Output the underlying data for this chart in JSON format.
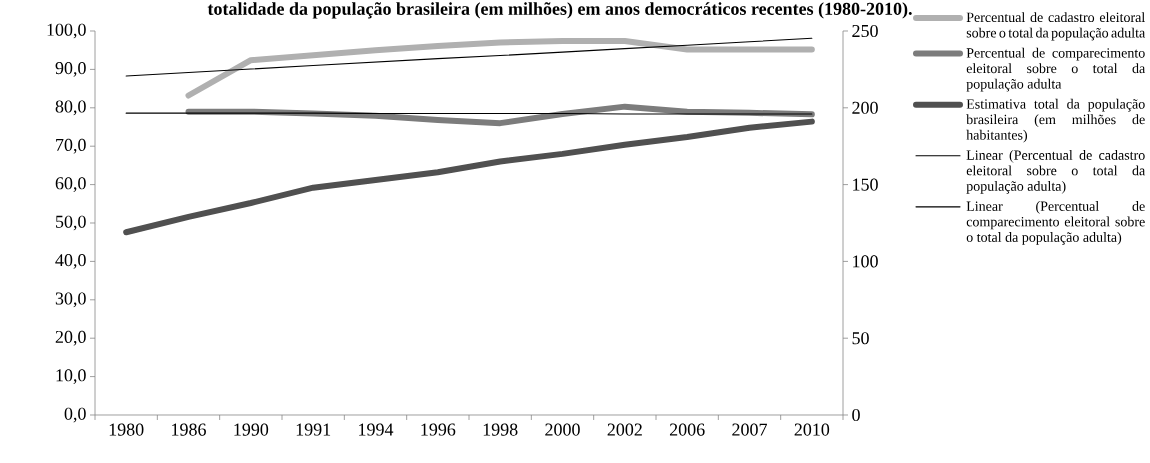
{
  "chart_data": {
    "type": "line",
    "title": "totalidade da população brasileira (em milhões) em anos democráticos recentes (1980-2010).",
    "categories": [
      "1980",
      "1986",
      "1990",
      "1991",
      "1994",
      "1996",
      "1998",
      "2000",
      "2002",
      "2006",
      "2007",
      "2010"
    ],
    "ylim": [
      0,
      100
    ],
    "yticks": [
      {
        "value": 0,
        "label": "0,0"
      },
      {
        "value": 10,
        "label": "10,0"
      },
      {
        "value": 20,
        "label": "20,0"
      },
      {
        "value": 30,
        "label": "30,0"
      },
      {
        "value": 40,
        "label": "40,0"
      },
      {
        "value": 50,
        "label": "50,0"
      },
      {
        "value": 60,
        "label": "60,0"
      },
      {
        "value": 70,
        "label": "70,0"
      },
      {
        "value": 80,
        "label": "80,0"
      },
      {
        "value": 90,
        "label": "90,0"
      },
      {
        "value": 100,
        "label": "100,0"
      }
    ],
    "y2lim": [
      0,
      250
    ],
    "y2ticks": [
      0,
      50,
      100,
      150,
      200,
      250
    ],
    "legend": "right",
    "series": [
      {
        "name": "Percentual de cadastro eleitoral sobre o total da população adulta",
        "color": "#b0b0b0",
        "values": [
          null,
          83.2,
          92.4,
          93.7,
          95.0,
          96.1,
          97.0,
          97.4,
          97.4,
          95.2,
          95.2,
          95.2
        ]
      },
      {
        "name": "Percentual de comparecimento eleitoral sobre o total da população adulta",
        "color": "#7c7c7c",
        "values": [
          null,
          79.0,
          79.0,
          78.5,
          77.9,
          76.8,
          76.0,
          78.4,
          80.3,
          79.0,
          78.7,
          78.3
        ]
      },
      {
        "name": "Estimativa total da população brasileira (em milhões de habitantes)",
        "color": "#505050",
        "axis": "y2",
        "values": [
          119,
          129,
          138,
          148,
          153,
          158,
          165,
          170,
          176,
          181,
          187,
          191
        ]
      },
      {
        "name": "Linear (Percentual de cadastro eleitoral sobre o total da população adulta)",
        "color": "#000000",
        "type": "line",
        "values": [
          88.3,
          89.2,
          90.1,
          91.0,
          91.9,
          92.8,
          93.6,
          94.5,
          95.4,
          96.3,
          97.2,
          98.1
        ]
      },
      {
        "name": "Linear (Percentual de comparecimento eleitoral sobre o total da população adulta)",
        "color": "#000000",
        "type": "line",
        "values": [
          78.6,
          78.6,
          78.6,
          78.6,
          78.5,
          78.5,
          78.5,
          78.5,
          78.4,
          78.4,
          78.4,
          78.4
        ]
      }
    ]
  }
}
